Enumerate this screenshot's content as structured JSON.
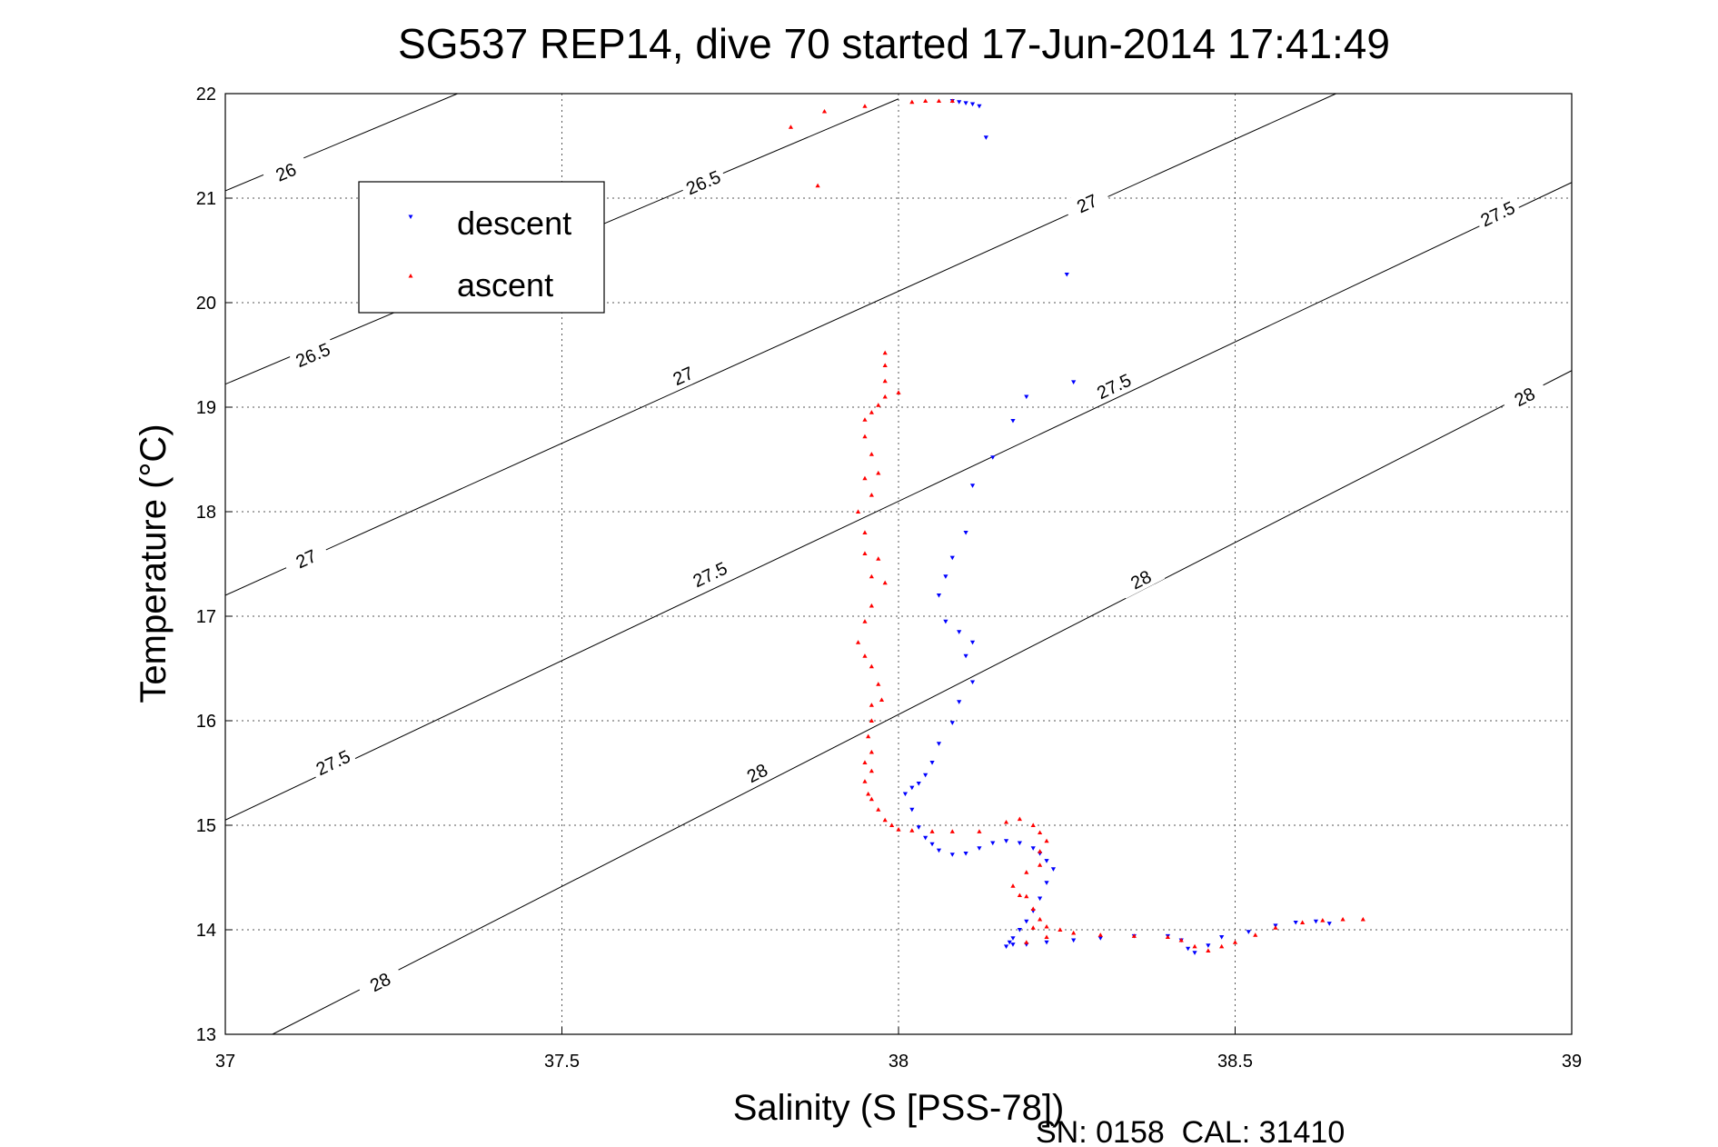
{
  "chart_data": {
    "type": "scatter",
    "title": "SG537 REP14, dive 70 started 17-Jun-2014 17:41:49",
    "xlabel": "Salinity (S [PSS-78])",
    "ylabel": "Temperature (°C)",
    "xlim": [
      37,
      39
    ],
    "ylim": [
      13,
      22
    ],
    "x_ticks": [
      "37",
      "37.5",
      "38",
      "38.5",
      "39"
    ],
    "y_ticks": [
      "13",
      "14",
      "15",
      "16",
      "17",
      "18",
      "19",
      "20",
      "21",
      "22"
    ],
    "grid": true,
    "legend_position": "upper-left",
    "density_contours": [
      {
        "level": "26",
        "line": [
          [
            37.0,
            21.07
          ],
          [
            37.345,
            22.0
          ]
        ],
        "labels": [
          [
            37.09,
            21.25
          ]
        ]
      },
      {
        "level": "26.5",
        "line": [
          [
            37.0,
            19.22
          ],
          [
            38.0,
            21.95
          ]
        ],
        "labels": [
          [
            37.13,
            19.5
          ],
          [
            37.71,
            21.15
          ]
        ]
      },
      {
        "level": "27",
        "line": [
          [
            37.0,
            17.2
          ],
          [
            38.65,
            22.0
          ]
        ],
        "labels": [
          [
            37.12,
            17.55
          ],
          [
            37.68,
            19.3
          ],
          [
            38.28,
            20.95
          ]
        ]
      },
      {
        "level": "27.5",
        "line": [
          [
            37.0,
            15.05
          ],
          [
            39.0,
            21.15
          ]
        ],
        "labels": [
          [
            37.16,
            15.6
          ],
          [
            37.72,
            17.4
          ],
          [
            38.32,
            19.2
          ],
          [
            38.89,
            20.85
          ]
        ]
      },
      {
        "level": "28",
        "line": [
          [
            37.07,
            13.0
          ],
          [
            39.0,
            19.35
          ]
        ],
        "labels": [
          [
            37.23,
            13.5
          ],
          [
            37.79,
            15.5
          ],
          [
            38.36,
            17.35
          ],
          [
            38.93,
            19.1
          ]
        ]
      }
    ],
    "series": [
      {
        "name": "descent",
        "color": "#0000ff",
        "marker": "triangle-down",
        "points": [
          [
            38.08,
            21.93
          ],
          [
            38.09,
            21.92
          ],
          [
            38.1,
            21.91
          ],
          [
            38.11,
            21.9
          ],
          [
            38.12,
            21.88
          ],
          [
            38.13,
            21.58
          ],
          [
            38.25,
            20.27
          ],
          [
            38.26,
            19.24
          ],
          [
            38.19,
            19.1
          ],
          [
            38.17,
            18.87
          ],
          [
            38.14,
            18.52
          ],
          [
            38.11,
            18.25
          ],
          [
            38.1,
            17.8
          ],
          [
            38.08,
            17.56
          ],
          [
            38.07,
            17.38
          ],
          [
            38.06,
            17.2
          ],
          [
            38.07,
            16.95
          ],
          [
            38.09,
            16.85
          ],
          [
            38.11,
            16.75
          ],
          [
            38.1,
            16.62
          ],
          [
            38.11,
            16.37
          ],
          [
            38.09,
            16.18
          ],
          [
            38.08,
            15.98
          ],
          [
            38.06,
            15.78
          ],
          [
            38.05,
            15.6
          ],
          [
            38.04,
            15.48
          ],
          [
            38.03,
            15.4
          ],
          [
            38.02,
            15.36
          ],
          [
            38.01,
            15.3
          ],
          [
            38.02,
            15.15
          ],
          [
            38.03,
            14.98
          ],
          [
            38.04,
            14.88
          ],
          [
            38.05,
            14.82
          ],
          [
            38.06,
            14.76
          ],
          [
            38.08,
            14.72
          ],
          [
            38.1,
            14.73
          ],
          [
            38.12,
            14.78
          ],
          [
            38.14,
            14.83
          ],
          [
            38.16,
            14.85
          ],
          [
            38.18,
            14.83
          ],
          [
            38.2,
            14.78
          ],
          [
            38.21,
            14.73
          ],
          [
            38.22,
            14.66
          ],
          [
            38.23,
            14.58
          ],
          [
            38.22,
            14.45
          ],
          [
            38.21,
            14.3
          ],
          [
            38.2,
            14.18
          ],
          [
            38.19,
            14.08
          ],
          [
            38.18,
            14.0
          ],
          [
            38.17,
            13.92
          ],
          [
            38.16,
            13.84
          ],
          [
            38.165,
            13.88
          ],
          [
            38.17,
            13.86
          ],
          [
            38.19,
            13.86
          ],
          [
            38.22,
            13.88
          ],
          [
            38.26,
            13.9
          ],
          [
            38.3,
            13.92
          ],
          [
            38.35,
            13.94
          ],
          [
            38.4,
            13.94
          ],
          [
            38.42,
            13.9
          ],
          [
            38.43,
            13.82
          ],
          [
            38.44,
            13.78
          ],
          [
            38.46,
            13.85
          ],
          [
            38.48,
            13.93
          ],
          [
            38.52,
            13.98
          ],
          [
            38.56,
            14.04
          ],
          [
            38.59,
            14.07
          ],
          [
            38.62,
            14.08
          ],
          [
            38.64,
            14.06
          ]
        ]
      },
      {
        "name": "ascent",
        "color": "#ff0000",
        "marker": "triangle-up",
        "points": [
          [
            37.84,
            21.68
          ],
          [
            37.89,
            21.83
          ],
          [
            37.95,
            21.88
          ],
          [
            38.02,
            21.92
          ],
          [
            38.04,
            21.93
          ],
          [
            38.06,
            21.93
          ],
          [
            38.08,
            21.93
          ],
          [
            37.88,
            21.12
          ],
          [
            37.98,
            19.52
          ],
          [
            37.98,
            19.4
          ],
          [
            37.98,
            19.25
          ],
          [
            37.98,
            19.1
          ],
          [
            38.0,
            19.14
          ],
          [
            37.97,
            19.02
          ],
          [
            37.96,
            18.95
          ],
          [
            37.95,
            18.88
          ],
          [
            37.95,
            18.72
          ],
          [
            37.96,
            18.55
          ],
          [
            37.97,
            18.37
          ],
          [
            37.95,
            18.32
          ],
          [
            37.96,
            18.16
          ],
          [
            37.94,
            18.0
          ],
          [
            37.95,
            17.8
          ],
          [
            37.95,
            17.6
          ],
          [
            37.97,
            17.55
          ],
          [
            37.96,
            17.38
          ],
          [
            37.98,
            17.32
          ],
          [
            37.96,
            17.1
          ],
          [
            37.95,
            16.95
          ],
          [
            37.94,
            16.75
          ],
          [
            37.95,
            16.62
          ],
          [
            37.96,
            16.52
          ],
          [
            37.97,
            16.35
          ],
          [
            37.975,
            16.2
          ],
          [
            37.96,
            16.15
          ],
          [
            37.96,
            16.0
          ],
          [
            37.955,
            15.85
          ],
          [
            37.96,
            15.7
          ],
          [
            37.95,
            15.6
          ],
          [
            37.96,
            15.52
          ],
          [
            37.95,
            15.42
          ],
          [
            37.955,
            15.3
          ],
          [
            37.96,
            15.25
          ],
          [
            37.97,
            15.15
          ],
          [
            37.98,
            15.05
          ],
          [
            37.99,
            15.0
          ],
          [
            38.0,
            14.96
          ],
          [
            38.02,
            14.95
          ],
          [
            38.05,
            14.94
          ],
          [
            38.08,
            14.94
          ],
          [
            38.12,
            14.94
          ],
          [
            38.16,
            15.03
          ],
          [
            38.18,
            15.06
          ],
          [
            38.2,
            15.0
          ],
          [
            38.21,
            14.93
          ],
          [
            38.22,
            14.85
          ],
          [
            38.21,
            14.75
          ],
          [
            38.21,
            14.62
          ],
          [
            38.19,
            14.55
          ],
          [
            38.17,
            14.42
          ],
          [
            38.19,
            14.32
          ],
          [
            38.18,
            14.33
          ],
          [
            38.2,
            14.2
          ],
          [
            38.21,
            14.1
          ],
          [
            38.22,
            14.03
          ],
          [
            38.24,
            14.0
          ],
          [
            38.26,
            13.97
          ],
          [
            38.3,
            13.95
          ],
          [
            38.35,
            13.94
          ],
          [
            38.4,
            13.93
          ],
          [
            38.42,
            13.9
          ],
          [
            38.44,
            13.84
          ],
          [
            38.46,
            13.8
          ],
          [
            38.48,
            13.84
          ],
          [
            38.5,
            13.88
          ],
          [
            38.53,
            13.95
          ],
          [
            38.56,
            14.02
          ],
          [
            38.6,
            14.07
          ],
          [
            38.63,
            14.09
          ],
          [
            38.66,
            14.1
          ],
          [
            38.69,
            14.1
          ],
          [
            38.22,
            13.93
          ],
          [
            38.19,
            13.88
          ],
          [
            38.2,
            14.02
          ]
        ]
      }
    ]
  },
  "footer": "SN: 0158  CAL: 31410"
}
